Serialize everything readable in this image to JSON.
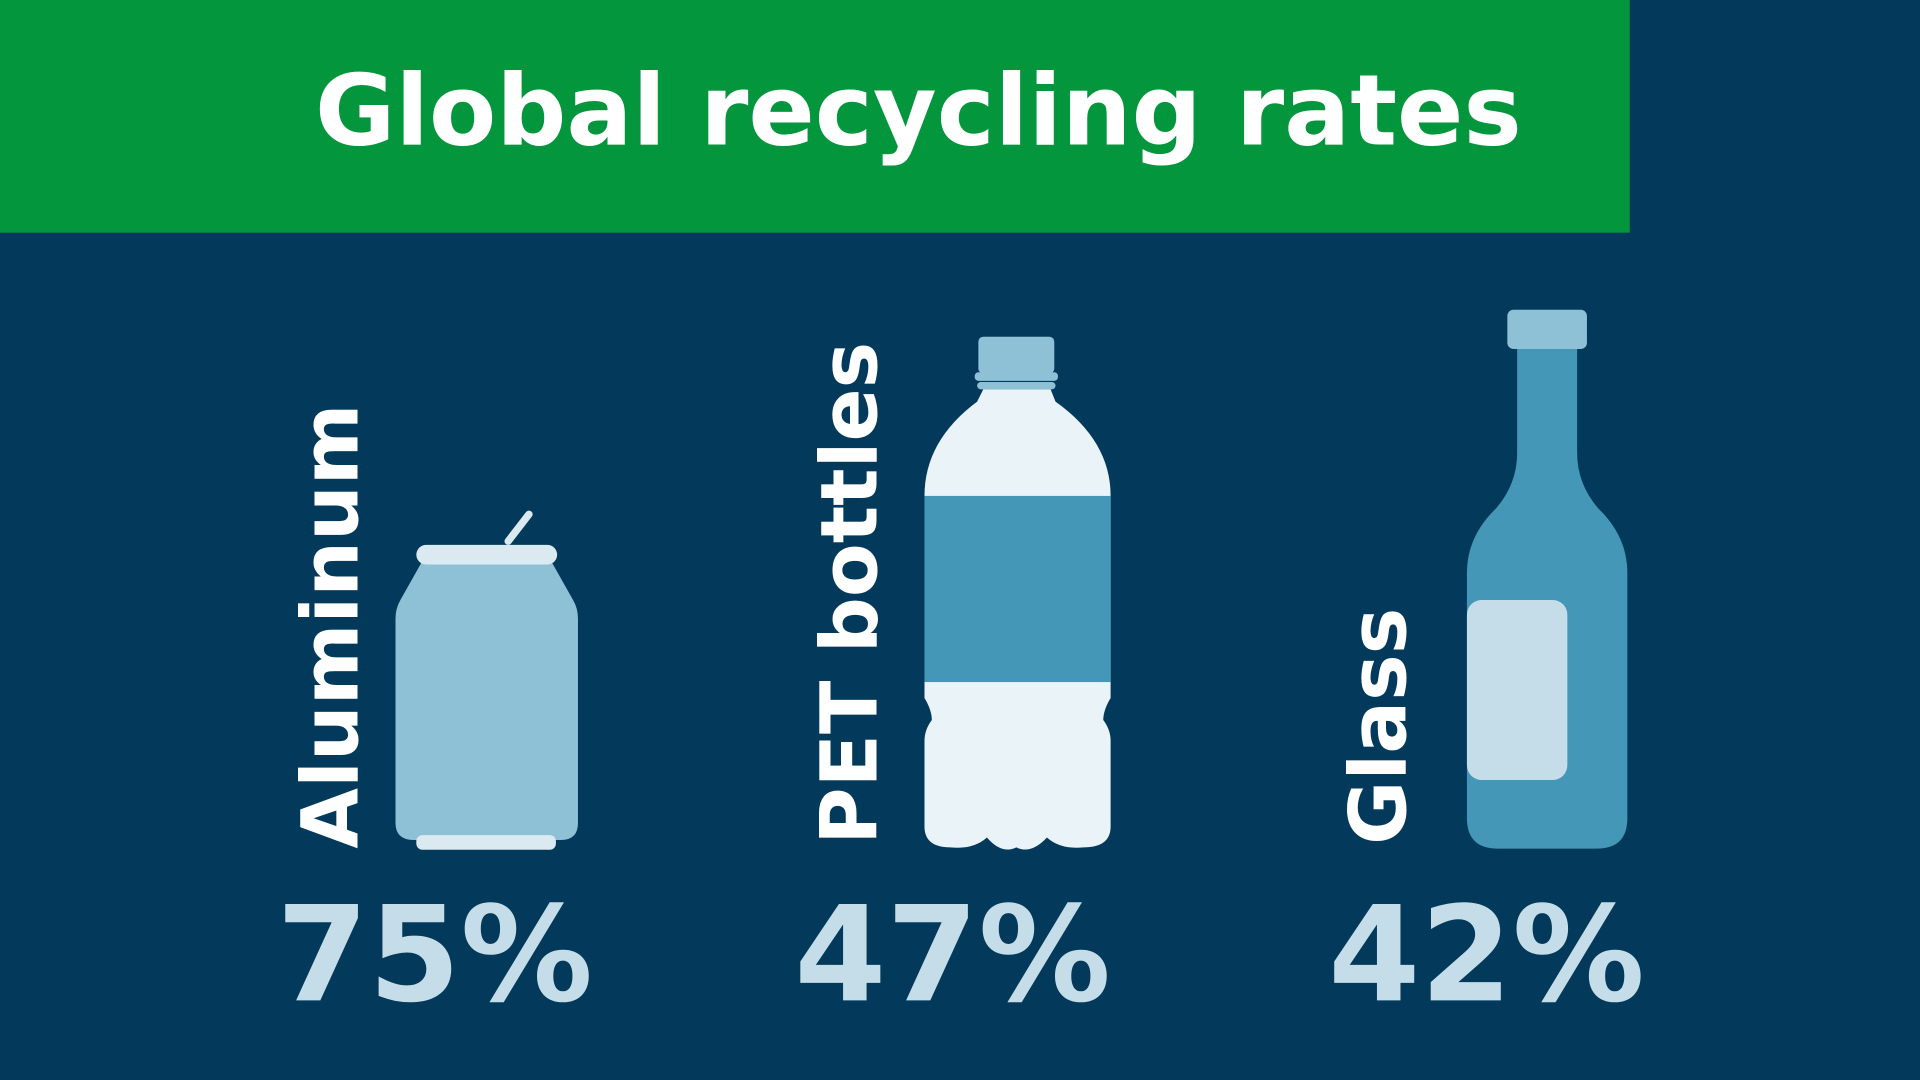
{
  "header": {
    "title": "Global recycling rates"
  },
  "items": [
    {
      "label": "Aluminum",
      "value": "75%"
    },
    {
      "label": "PET bottles",
      "value": "47%"
    },
    {
      "label": "Glass",
      "value": "42%"
    }
  ]
}
